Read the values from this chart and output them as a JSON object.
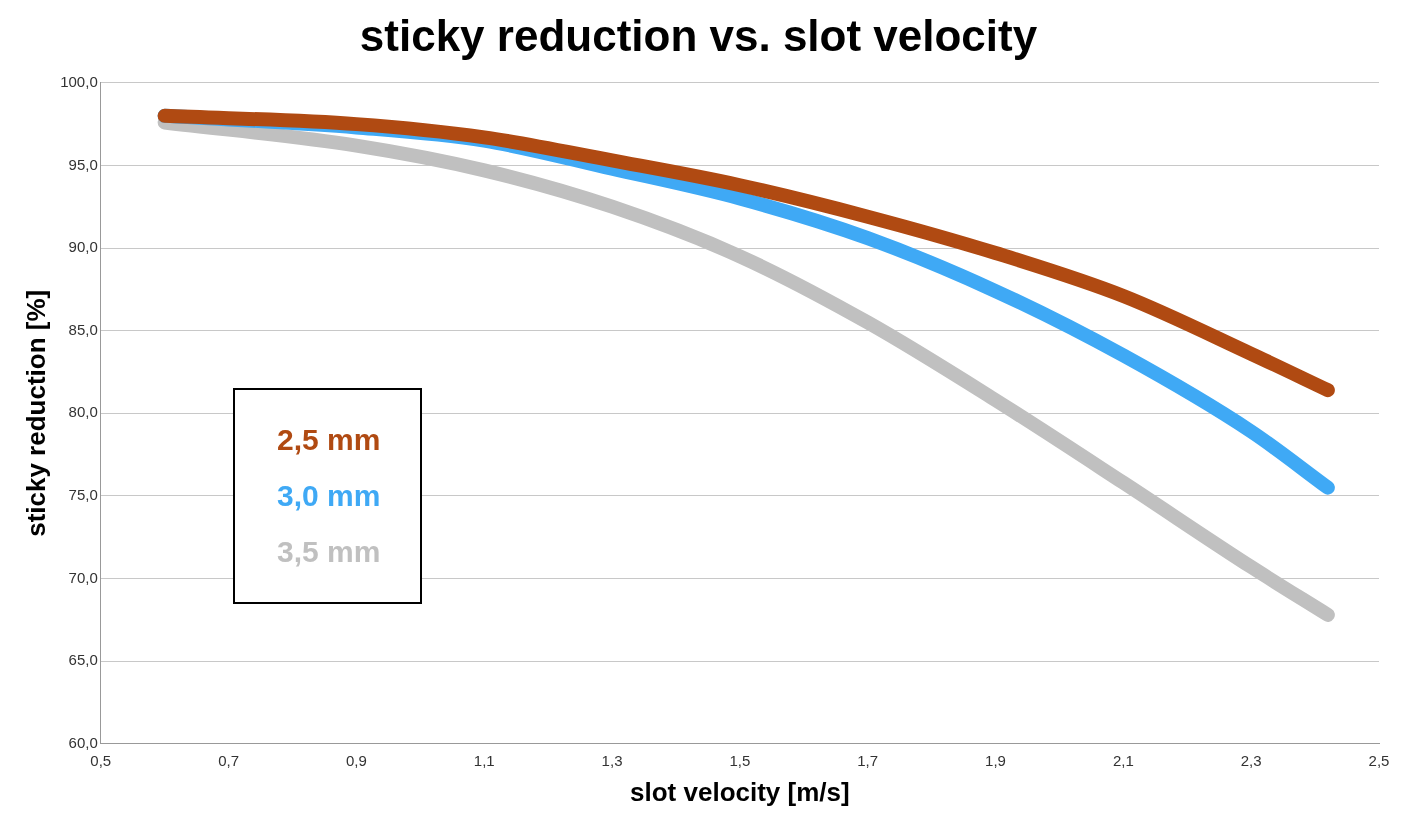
{
  "chart_data": {
    "type": "line",
    "title": "sticky reduction vs. slot velocity",
    "xlabel": "slot velocity [m/s]",
    "ylabel": "sticky reduction [%]",
    "x": [
      0.6,
      0.9,
      1.1,
      1.3,
      1.5,
      1.7,
      1.9,
      2.1,
      2.3,
      2.42
    ],
    "series": [
      {
        "name": "2,5 mm",
        "color": "#b04a12",
        "values": [
          98.0,
          97.5,
          96.7,
          95.3,
          93.8,
          91.9,
          89.7,
          87.1,
          83.6,
          81.4
        ]
      },
      {
        "name": "3,0 mm",
        "color": "#3fa9f5",
        "values": [
          98.0,
          97.3,
          96.5,
          94.8,
          93.0,
          90.6,
          87.4,
          83.5,
          78.9,
          75.5
        ]
      },
      {
        "name": "3,5 mm",
        "color": "#c0c0c0",
        "values": [
          97.6,
          96.2,
          94.7,
          92.5,
          89.5,
          85.5,
          80.8,
          75.8,
          70.7,
          67.8
        ]
      }
    ],
    "xlim": [
      0.5,
      2.5
    ],
    "xticks": [
      {
        "value": 0.5,
        "label": "0,5"
      },
      {
        "value": 0.7,
        "label": "0,7"
      },
      {
        "value": 0.9,
        "label": "0,9"
      },
      {
        "value": 1.1,
        "label": "1,1"
      },
      {
        "value": 1.3,
        "label": "1,3"
      },
      {
        "value": 1.5,
        "label": "1,5"
      },
      {
        "value": 1.7,
        "label": "1,7"
      },
      {
        "value": 1.9,
        "label": "1,9"
      },
      {
        "value": 2.1,
        "label": "2,1"
      },
      {
        "value": 2.3,
        "label": "2,3"
      },
      {
        "value": 2.5,
        "label": "2,5"
      }
    ],
    "ylim": [
      60,
      100
    ],
    "yticks": [
      {
        "value": 60,
        "label": "60,0"
      },
      {
        "value": 65,
        "label": "65,0"
      },
      {
        "value": 70,
        "label": "70,0"
      },
      {
        "value": 75,
        "label": "75,0"
      },
      {
        "value": 80,
        "label": "80,0"
      },
      {
        "value": 85,
        "label": "85,0"
      },
      {
        "value": 90,
        "label": "90,0"
      },
      {
        "value": 95,
        "label": "95,0"
      },
      {
        "value": 100,
        "label": "100,0"
      }
    ],
    "grid": "y",
    "legend": "left",
    "marker": "none",
    "line_style": "solid"
  }
}
